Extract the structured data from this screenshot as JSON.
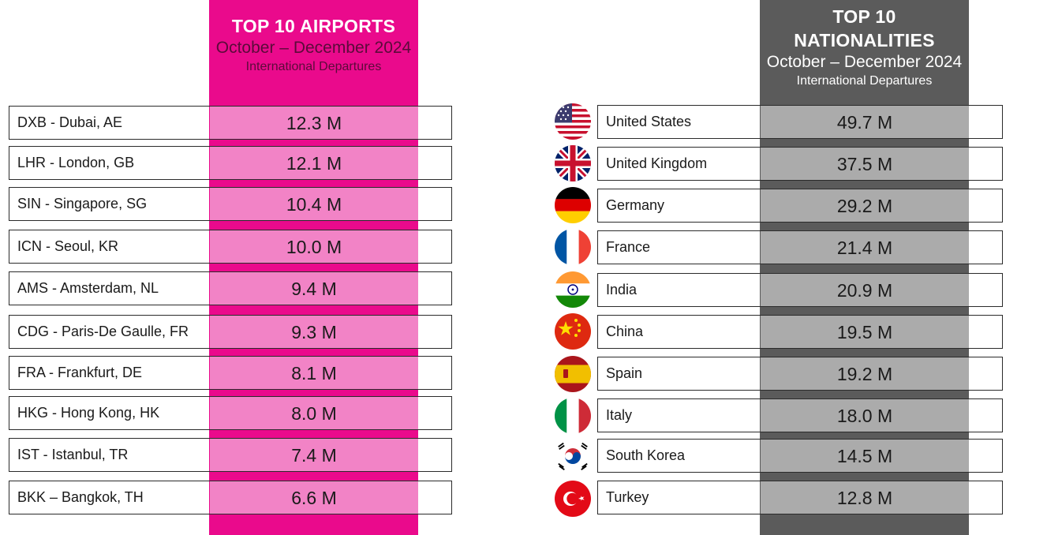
{
  "airports_panel": {
    "title": "TOP 10 AIRPORTS",
    "period": "October – December 2024",
    "subtitle": "International Departures",
    "accent_color": "#ea0a8c",
    "rows": [
      {
        "name": "DXB - Dubai, AE",
        "value": "12.3 M"
      },
      {
        "name": "LHR - London, GB",
        "value": "12.1 M"
      },
      {
        "name": "SIN - Singapore, SG",
        "value": "10.4 M"
      },
      {
        "name": "ICN - Seoul, KR",
        "value": "10.0 M"
      },
      {
        "name": "AMS - Amsterdam, NL",
        "value": "9.4 M"
      },
      {
        "name": "CDG - Paris-De Gaulle, FR",
        "value": "9.3 M"
      },
      {
        "name": "FRA - Frankfurt, DE",
        "value": "8.1 M"
      },
      {
        "name": "HKG - Hong Kong, HK",
        "value": "8.0 M"
      },
      {
        "name": "IST - Istanbul, TR",
        "value": "7.4 M"
      },
      {
        "name": "BKK – Bangkok, TH",
        "value": "6.6 M"
      }
    ]
  },
  "nationalities_panel": {
    "title_line1": "TOP 10",
    "title_line2": "NATIONALITIES",
    "period": "October – December 2024",
    "subtitle": "International Departures",
    "accent_color": "#5b5b5b",
    "rows": [
      {
        "name": "United States",
        "value": "49.7 M",
        "flag_icon": "us-flag-icon"
      },
      {
        "name": "United Kingdom",
        "value": "37.5 M",
        "flag_icon": "uk-flag-icon"
      },
      {
        "name": "Germany",
        "value": "29.2 M",
        "flag_icon": "germany-flag-icon"
      },
      {
        "name": "France",
        "value": "21.4 M",
        "flag_icon": "france-flag-icon"
      },
      {
        "name": "India",
        "value": "20.9 M",
        "flag_icon": "india-flag-icon"
      },
      {
        "name": "China",
        "value": "19.5 M",
        "flag_icon": "china-flag-icon"
      },
      {
        "name": "Spain",
        "value": "19.2 M",
        "flag_icon": "spain-flag-icon"
      },
      {
        "name": "Italy",
        "value": "18.0 M",
        "flag_icon": "italy-flag-icon"
      },
      {
        "name": "South Korea",
        "value": "14.5 M",
        "flag_icon": "south-korea-flag-icon"
      },
      {
        "name": "Turkey",
        "value": "12.8 M",
        "flag_icon": "turkey-flag-icon"
      }
    ]
  }
}
